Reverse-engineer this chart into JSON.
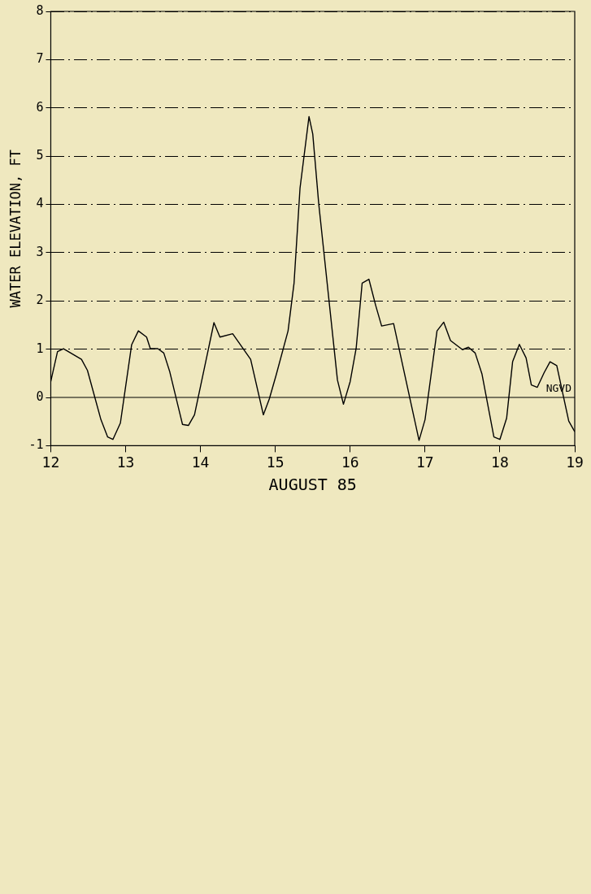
{
  "chart_data": {
    "type": "line",
    "xlabel": "AUGUST 85",
    "ylabel": "WATER ELEVATION, FT",
    "x": [
      12.0,
      12.09,
      12.17,
      12.41,
      12.49,
      12.67,
      12.76,
      12.83,
      12.93,
      13.08,
      13.17,
      13.28,
      13.33,
      13.43,
      13.51,
      13.59,
      13.76,
      13.84,
      13.92,
      14.18,
      14.26,
      14.43,
      14.67,
      14.84,
      14.92,
      15.01,
      15.17,
      15.25,
      15.33,
      15.45,
      15.5,
      15.58,
      15.83,
      15.91,
      16.0,
      16.08,
      16.16,
      16.25,
      16.34,
      16.42,
      16.58,
      16.92,
      17.0,
      17.16,
      17.25,
      17.34,
      17.5,
      17.58,
      17.67,
      17.76,
      17.92,
      18.0,
      18.09,
      18.17,
      18.26,
      18.35,
      18.42,
      18.5,
      18.59,
      18.67,
      18.76,
      18.92,
      19.0
    ],
    "series": [
      {
        "color": "#000000",
        "values": [
          0.33,
          0.95,
          1.01,
          0.79,
          0.56,
          -0.46,
          -0.82,
          -0.87,
          -0.53,
          1.09,
          1.38,
          1.25,
          1.01,
          1.01,
          0.92,
          0.53,
          -0.56,
          -0.58,
          -0.36,
          1.55,
          1.25,
          1.32,
          0.79,
          -0.36,
          -0.03,
          0.46,
          1.38,
          2.37,
          4.34,
          5.82,
          5.46,
          4.01,
          0.36,
          -0.14,
          0.33,
          1.02,
          2.37,
          2.45,
          1.91,
          1.48,
          1.53,
          -0.89,
          -0.46,
          1.38,
          1.56,
          1.18,
          0.99,
          1.04,
          0.92,
          0.49,
          -0.82,
          -0.87,
          -0.43,
          0.74,
          1.1,
          0.82,
          0.26,
          0.21,
          0.51,
          0.74,
          0.66,
          -0.49,
          -0.71
        ]
      }
    ],
    "xlim": [
      12,
      19
    ],
    "xticks": [
      12,
      13,
      14,
      15,
      16,
      17,
      18,
      19
    ],
    "ylim": [
      -1,
      8
    ],
    "yticks": [
      -1,
      0,
      1,
      2,
      3,
      4,
      5,
      6,
      7,
      8
    ],
    "ref_lines": [
      {
        "axis": "y",
        "value": 0,
        "label": "NGVD",
        "color": "#000000",
        "line_style": "solid"
      }
    ],
    "grid": "y",
    "legend": false,
    "marker": "none",
    "line_style": "solid"
  }
}
